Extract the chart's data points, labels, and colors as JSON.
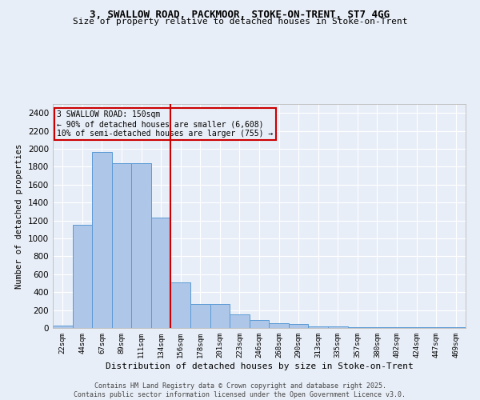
{
  "title_line1": "3, SWALLOW ROAD, PACKMOOR, STOKE-ON-TRENT, ST7 4GG",
  "title_line2": "Size of property relative to detached houses in Stoke-on-Trent",
  "xlabel": "Distribution of detached houses by size in Stoke-on-Trent",
  "ylabel": "Number of detached properties",
  "categories": [
    "22sqm",
    "44sqm",
    "67sqm",
    "89sqm",
    "111sqm",
    "134sqm",
    "156sqm",
    "178sqm",
    "201sqm",
    "223sqm",
    "246sqm",
    "268sqm",
    "290sqm",
    "313sqm",
    "335sqm",
    "357sqm",
    "380sqm",
    "402sqm",
    "424sqm",
    "447sqm",
    "469sqm"
  ],
  "values": [
    25,
    1150,
    1960,
    1840,
    1840,
    1230,
    510,
    270,
    265,
    155,
    90,
    50,
    45,
    20,
    15,
    10,
    12,
    5,
    5,
    5,
    8
  ],
  "bar_color": "#aec6e8",
  "bar_edge_color": "#5b9bd5",
  "vline_x_idx": 6,
  "vline_color": "#cc0000",
  "annotation_text": "3 SWALLOW ROAD: 150sqm\n← 90% of detached houses are smaller (6,608)\n10% of semi-detached houses are larger (755) →",
  "ylim": [
    0,
    2500
  ],
  "yticks": [
    0,
    200,
    400,
    600,
    800,
    1000,
    1200,
    1400,
    1600,
    1800,
    2000,
    2200,
    2400
  ],
  "background_color": "#e8eef7",
  "grid_color": "#d8e0ec",
  "footer_line1": "Contains HM Land Registry data © Crown copyright and database right 2025.",
  "footer_line2": "Contains public sector information licensed under the Open Government Licence v3.0."
}
